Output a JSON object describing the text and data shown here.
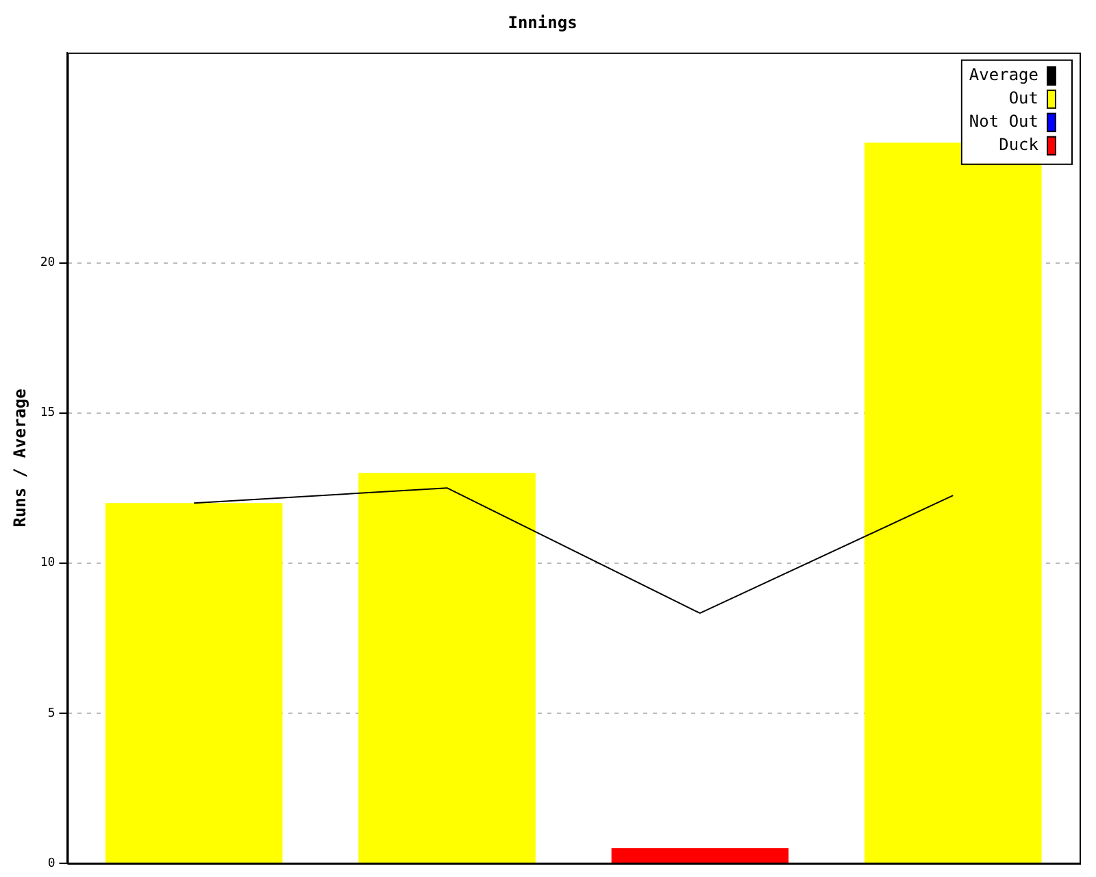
{
  "chart_data": {
    "type": "bar",
    "title": "Innings",
    "ylabel": "Runs / Average",
    "categories": [
      null,
      null,
      null,
      null
    ],
    "series": [
      {
        "name": "Average",
        "type": "line",
        "color": "#000000",
        "values": [
          12,
          12.5,
          8.33,
          12.25
        ]
      },
      {
        "name": "Out",
        "color": "#ffff00",
        "values": [
          12,
          13,
          null,
          24
        ]
      },
      {
        "name": "Not Out",
        "color": "#0000ff",
        "values": [
          null,
          null,
          null,
          null
        ]
      },
      {
        "name": "Duck",
        "color": "#ff0000",
        "values": [
          null,
          null,
          0.5,
          null
        ]
      }
    ],
    "stacked": true,
    "ylim": [
      0,
      27
    ],
    "yticks": [
      0,
      5,
      10,
      15,
      20
    ],
    "grid": "y",
    "legend": "top right",
    "tick_labels": "y",
    "marker": "none"
  }
}
